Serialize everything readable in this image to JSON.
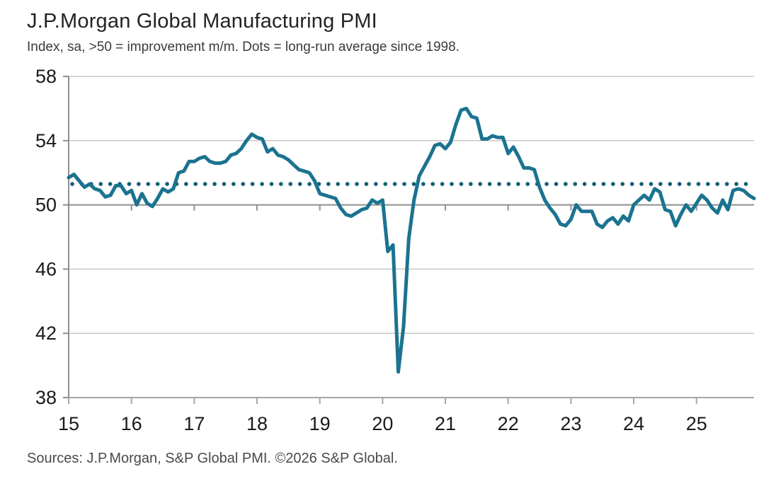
{
  "header": {
    "title": "J.P.Morgan Global Manufacturing PMI",
    "subtitle": "Index, sa, >50 = improvement m/m. Dots = long-run average since 1998."
  },
  "footer": {
    "source": "Sources: J.P.Morgan, S&P Global PMI. ©2026 S&P Global."
  },
  "colors": {
    "line": "#1b7390",
    "average_dots": "#155f7a",
    "grid": "#c8c8c8",
    "grid_emphasis": "#8f8f8f",
    "bottom_axis": "#a6a6a6",
    "axis": "#8f8f8f",
    "label_text": "#1a1a1a",
    "background": "#ffffff"
  },
  "chart_data": {
    "type": "line",
    "title": "J.P.Morgan Global Manufacturing PMI",
    "subtitle": "Index, sa, >50 = improvement m/m. Dots = long-run average since 1998.",
    "xlabel": "",
    "ylabel": "Index, sa",
    "x_unit": "month",
    "x_start": "2015-01",
    "x_end": "2025-12",
    "ylim": [
      38,
      58
    ],
    "yticks": [
      38,
      42,
      46,
      50,
      54,
      58
    ],
    "xtick_year_labels": [
      "15",
      "16",
      "17",
      "18",
      "19",
      "20",
      "21",
      "22",
      "23",
      "24",
      "25"
    ],
    "threshold_line": 50,
    "average_line": {
      "value": 51.3,
      "style": "dotted",
      "label": "long-run average since 1998"
    },
    "grid": true,
    "legend_position": "none",
    "series": [
      {
        "name": "Global Manufacturing PMI",
        "monthly_values": [
          51.7,
          51.9,
          51.5,
          51.1,
          51.3,
          51.0,
          50.9,
          50.5,
          50.6,
          51.2,
          51.2,
          50.7,
          50.9,
          50.0,
          50.7,
          50.1,
          49.9,
          50.4,
          51.0,
          50.8,
          51.0,
          52.0,
          52.1,
          52.7,
          52.7,
          52.9,
          53.0,
          52.7,
          52.6,
          52.6,
          52.7,
          53.1,
          53.2,
          53.5,
          54.0,
          54.4,
          54.2,
          54.1,
          53.3,
          53.5,
          53.1,
          53.0,
          52.8,
          52.5,
          52.2,
          52.1,
          52.0,
          51.5,
          50.7,
          50.6,
          50.5,
          50.4,
          49.8,
          49.4,
          49.3,
          49.5,
          49.7,
          49.8,
          50.3,
          50.1,
          50.3,
          47.1,
          47.5,
          39.6,
          42.4,
          47.9,
          50.3,
          51.8,
          52.4,
          53.0,
          53.7,
          53.8,
          53.5,
          53.9,
          55.0,
          55.9,
          56.0,
          55.5,
          55.4,
          54.1,
          54.1,
          54.3,
          54.2,
          54.2,
          53.2,
          53.6,
          53.0,
          52.3,
          52.3,
          52.2,
          51.1,
          50.3,
          49.8,
          49.4,
          48.8,
          48.7,
          49.1,
          50.0,
          49.6,
          49.6,
          49.6,
          48.8,
          48.6,
          49.0,
          49.2,
          48.8,
          49.3,
          49.0,
          50.0,
          50.3,
          50.6,
          50.3,
          51.0,
          50.8,
          49.7,
          49.6,
          48.7,
          49.4,
          50.0,
          49.6,
          50.1,
          50.6,
          50.3,
          49.8,
          49.5,
          50.3,
          49.7,
          50.9,
          51.0,
          50.9,
          50.6,
          50.4
        ]
      }
    ]
  }
}
